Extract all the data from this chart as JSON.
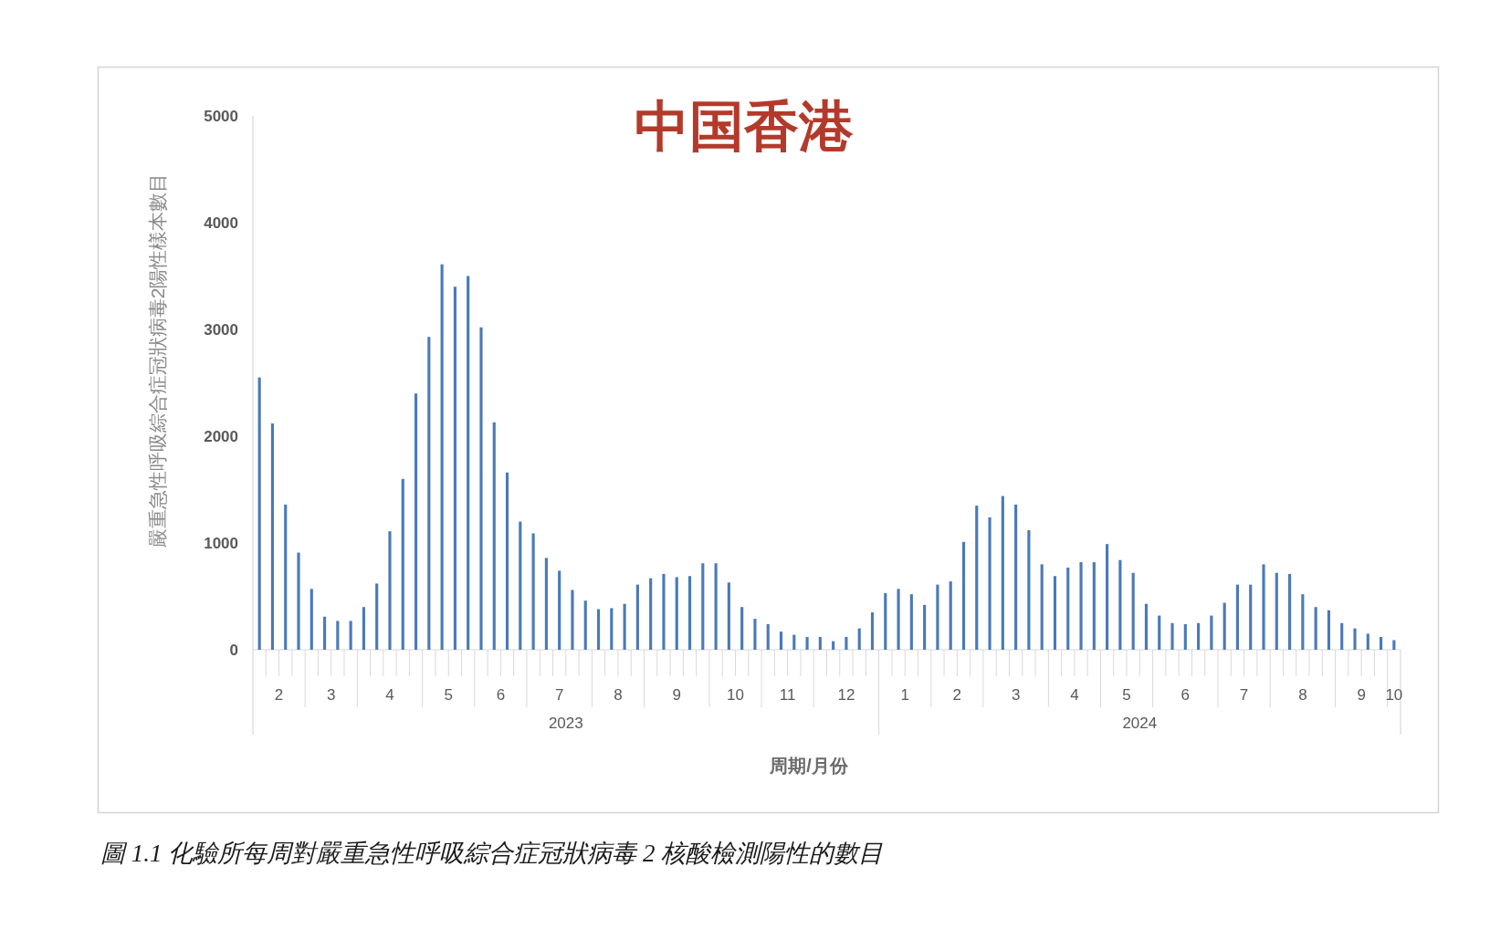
{
  "chart_data": {
    "type": "bar",
    "title": "中国香港",
    "xlabel": "周期/月份",
    "ylabel": "嚴重急性呼吸綜合症冠狀病毒2陽性樣本數目",
    "annotations": [
      "2023",
      "2024",
      "圖 1.1 化驗所每周對嚴重急性呼吸綜合症冠狀病毒 2 核酸檢測陽性的數目"
    ],
    "color": "#4a7ab8",
    "x": [
      "2023-02-04",
      "2023-02-11",
      "2023-02-18",
      "2023-02-25",
      "2023-03-04",
      "2023-03-11",
      "2023-03-18",
      "2023-03-25",
      "2023-04-01",
      "2023-04-08",
      "2023-04-15",
      "2023-04-22",
      "2023-04-29",
      "2023-05-06",
      "2023-05-13",
      "2023-05-20",
      "2023-05-27",
      "2023-06-03",
      "2023-06-10",
      "2023-06-17",
      "2023-06-24",
      "2023-07-01",
      "2023-07-08",
      "2023-07-15",
      "2023-07-22",
      "2023-07-29",
      "2023-08-05",
      "2023-08-12",
      "2023-08-19",
      "2023-08-26",
      "2023-09-02",
      "2023-09-09",
      "2023-09-16",
      "2023-09-23",
      "2023-09-30",
      "2023-10-07",
      "2023-10-14",
      "2023-10-21",
      "2023-10-28",
      "2023-11-04",
      "2023-11-11",
      "2023-11-18",
      "2023-11-25",
      "2023-12-02",
      "2023-12-09",
      "2023-12-16",
      "2023-12-23",
      "2023-12-30",
      "2024-01-06",
      "2024-01-13",
      "2024-01-20",
      "2024-01-27",
      "2024-02-03",
      "2024-02-10",
      "2024-02-17",
      "2024-02-24",
      "2024-03-02",
      "2024-03-09",
      "2024-03-16",
      "2024-03-23",
      "2024-03-30",
      "2024-04-06",
      "2024-04-13",
      "2024-04-20",
      "2024-04-27",
      "2024-05-04",
      "2024-05-11",
      "2024-05-18",
      "2024-05-25",
      "2024-06-01",
      "2024-06-08",
      "2024-06-15",
      "2024-06-22",
      "2024-06-29",
      "2024-07-06",
      "2024-07-13",
      "2024-07-20",
      "2024-07-27",
      "2024-08-03",
      "2024-08-10",
      "2024-08-17",
      "2024-08-24",
      "2024-08-31",
      "2024-09-07",
      "2024-09-14",
      "2024-09-21",
      "2024-09-28",
      "2024-10-05"
    ],
    "values": [
      2550,
      2120,
      1360,
      910,
      570,
      310,
      270,
      270,
      400,
      620,
      1110,
      1600,
      2400,
      2930,
      3610,
      3400,
      3500,
      3020,
      2130,
      1660,
      1200,
      1090,
      860,
      740,
      560,
      460,
      380,
      390,
      430,
      610,
      670,
      710,
      680,
      690,
      810,
      810,
      630,
      400,
      290,
      240,
      170,
      140,
      120,
      120,
      80,
      120,
      200,
      350,
      530,
      570,
      520,
      420,
      610,
      640,
      1010,
      1350,
      1240,
      1440,
      1360,
      1120,
      800,
      690,
      770,
      820,
      820,
      990,
      840,
      720,
      430,
      320,
      250,
      240,
      250,
      320,
      440,
      610,
      610,
      800,
      720,
      710,
      520,
      400,
      370,
      250,
      200,
      150,
      120,
      90
    ],
    "xlim": [
      "2023-01-31T12:00",
      "2024-10-08T12:00"
    ],
    "xticks": [
      {
        "value": "2023-02-14T12:00",
        "label": "2"
      },
      {
        "value": "2023-03-14T12:00",
        "label": "3"
      },
      {
        "value": "2023-04-15",
        "label": "4"
      },
      {
        "value": "2023-05-16T12:00",
        "label": "5"
      },
      {
        "value": "2023-06-13T12:00",
        "label": "6"
      },
      {
        "value": "2023-07-15",
        "label": "7"
      },
      {
        "value": "2023-08-15T12:00",
        "label": "8"
      },
      {
        "value": "2023-09-16",
        "label": "9"
      },
      {
        "value": "2023-10-17T12:00",
        "label": "10"
      },
      {
        "value": "2023-11-14T12:00",
        "label": "11"
      },
      {
        "value": "2023-12-16",
        "label": "12"
      },
      {
        "value": "2024-01-16T12:00",
        "label": "1"
      },
      {
        "value": "2024-02-13T12:00",
        "label": "2"
      },
      {
        "value": "2024-03-16",
        "label": "3"
      },
      {
        "value": "2024-04-16T12:00",
        "label": "4"
      },
      {
        "value": "2024-05-14T12:00",
        "label": "5"
      },
      {
        "value": "2024-06-15",
        "label": "6"
      },
      {
        "value": "2024-07-16T12:00",
        "label": "7"
      },
      {
        "value": "2024-08-17",
        "label": "8"
      },
      {
        "value": "2024-09-17T12:00",
        "label": "9"
      },
      {
        "value": "2024-10-05",
        "label": "10"
      }
    ],
    "ylim": [
      0,
      5000
    ],
    "yticks": [
      0,
      1000,
      2000,
      3000,
      4000,
      5000
    ]
  }
}
